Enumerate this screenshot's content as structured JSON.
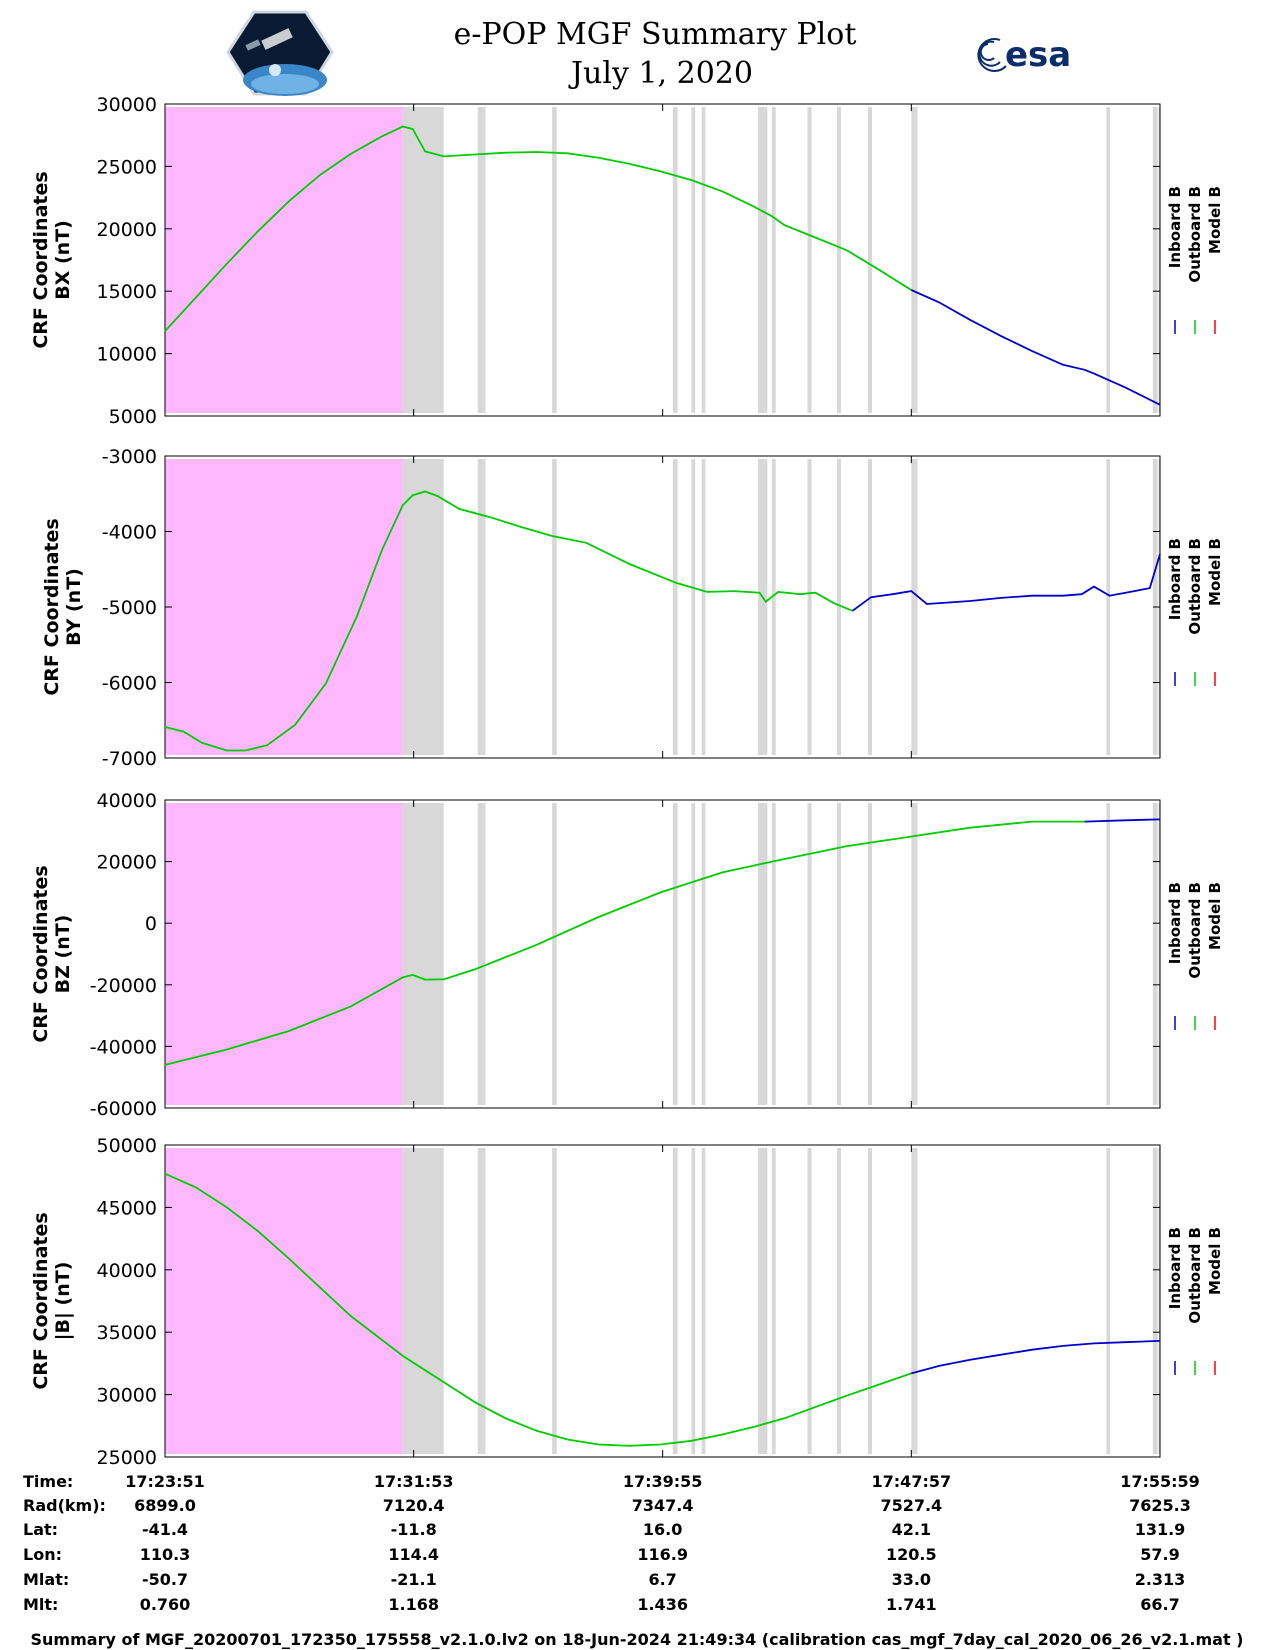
{
  "header": {
    "title": "e-POP MGF Summary Plot",
    "date": "July 1, 2020",
    "logo_left": "cassiope-mission-logo",
    "logo_right_text": "esa"
  },
  "colors": {
    "inboard": "#0000cc",
    "outboard": "#00cc00",
    "model": "#ff0000",
    "pink_region": "#ffb8ff",
    "gray_region": "#d8d8d8"
  },
  "legend": [
    "Inboard B",
    "Outboard B",
    "Model B"
  ],
  "time_axis": {
    "start_min": 0,
    "end_min": 32.13,
    "tick_minutes": [
      0,
      8.03,
      16.07,
      24.1,
      32.13
    ]
  },
  "shading": {
    "pink": [
      [
        0,
        7.68
      ]
    ],
    "gray": [
      [
        7.68,
        9.0
      ],
      [
        10.1,
        10.35
      ],
      [
        12.5,
        12.65
      ],
      [
        16.4,
        16.55
      ],
      [
        17.0,
        17.12
      ],
      [
        17.33,
        17.45
      ],
      [
        19.15,
        19.45
      ],
      [
        19.6,
        19.72
      ],
      [
        20.75,
        20.88
      ],
      [
        21.7,
        21.83
      ],
      [
        22.7,
        22.83
      ],
      [
        24.1,
        24.3
      ],
      [
        30.4,
        30.52
      ],
      [
        31.9,
        32.05
      ],
      [
        32.08,
        32.13
      ]
    ]
  },
  "chart_data": [
    {
      "type": "line",
      "id": "bx",
      "ylabel_line1": "CRF Coordinates",
      "ylabel_line2": "BX (nT)",
      "ylim": [
        5000,
        30000
      ],
      "yticks": [
        5000,
        10000,
        15000,
        20000,
        25000,
        30000
      ],
      "series": [
        {
          "name": "Outboard B",
          "x": [
            0,
            1,
            2,
            3,
            4,
            5,
            6,
            7,
            7.68,
            8.0,
            8.4,
            9.0,
            10,
            11,
            12,
            13,
            14,
            15,
            16,
            17,
            18,
            19,
            19.6,
            20,
            21,
            22,
            23,
            24.1
          ],
          "y": [
            11800,
            14500,
            17200,
            19800,
            22200,
            24300,
            26000,
            27400,
            28200,
            28000,
            26200,
            25800,
            25950,
            26100,
            26150,
            26050,
            25700,
            25200,
            24600,
            23900,
            23000,
            21800,
            21000,
            20300,
            19300,
            18300,
            16800,
            15100
          ]
        },
        {
          "name": "Inboard B",
          "x": [
            24.1,
            25,
            26,
            27,
            28,
            29,
            29.7,
            30,
            31,
            32.13
          ],
          "y": [
            15100,
            14100,
            12700,
            11400,
            10200,
            9100,
            8700,
            8400,
            7300,
            5900
          ]
        }
      ]
    },
    {
      "type": "line",
      "id": "by",
      "ylabel_line1": "CRF Coordinates",
      "ylabel_line2": "BY (nT)",
      "ylim": [
        -7000,
        -3000
      ],
      "yticks": [
        -7000,
        -6000,
        -5000,
        -4000,
        -3000
      ],
      "series": [
        {
          "name": "Outboard B",
          "x": [
            0,
            0.6,
            1.2,
            2.0,
            2.6,
            3.3,
            4.2,
            5.2,
            6.2,
            7.0,
            7.68,
            8.0,
            8.4,
            8.8,
            9.5,
            10.5,
            11.5,
            12.5,
            13.6,
            15,
            16.5,
            17.5,
            18.4,
            19.2,
            19.4,
            19.8,
            20.5,
            21.0,
            21.6,
            22.2
          ],
          "y": [
            -6590,
            -6650,
            -6800,
            -6900,
            -6900,
            -6830,
            -6560,
            -6010,
            -5120,
            -4250,
            -3650,
            -3520,
            -3470,
            -3530,
            -3700,
            -3810,
            -3940,
            -4060,
            -4150,
            -4430,
            -4680,
            -4800,
            -4790,
            -4810,
            -4930,
            -4800,
            -4830,
            -4810,
            -4950,
            -5050
          ]
        },
        {
          "name": "Inboard B",
          "x": [
            22.2,
            22.8,
            23.5,
            24.1,
            24.6,
            25.3,
            26,
            27,
            28,
            29,
            29.6,
            30,
            30.5,
            31.3,
            31.8,
            32.13
          ],
          "y": [
            -5050,
            -4870,
            -4830,
            -4790,
            -4960,
            -4940,
            -4920,
            -4880,
            -4850,
            -4850,
            -4830,
            -4730,
            -4850,
            -4790,
            -4750,
            -4300
          ]
        }
      ]
    },
    {
      "type": "line",
      "id": "bz",
      "ylabel_line1": "CRF Coordinates",
      "ylabel_line2": "BZ (nT)",
      "ylim": [
        -60000,
        40000
      ],
      "yticks": [
        -60000,
        -40000,
        -20000,
        0,
        20000,
        40000
      ],
      "series": [
        {
          "name": "Outboard B",
          "x": [
            0,
            2,
            4,
            6,
            7.68,
            8.0,
            8.4,
            9.0,
            10,
            12,
            14,
            16,
            18,
            19.6,
            22,
            24,
            26,
            28,
            29.7
          ],
          "y": [
            -46000,
            -41000,
            -35000,
            -27000,
            -17600,
            -16800,
            -18300,
            -18200,
            -15000,
            -7000,
            2000,
            10000,
            16500,
            20000,
            25000,
            28000,
            31000,
            33000,
            33000
          ]
        },
        {
          "name": "Inboard B",
          "x": [
            29.7,
            31,
            32.13
          ],
          "y": [
            33000,
            33400,
            33700
          ]
        }
      ]
    },
    {
      "type": "line",
      "id": "bmag",
      "ylabel_line1": "CRF Coordinates",
      "ylabel_line2": "|B| (nT)",
      "ylim": [
        25000,
        50000
      ],
      "yticks": [
        25000,
        30000,
        35000,
        40000,
        45000,
        50000
      ],
      "series": [
        {
          "name": "Outboard B",
          "x": [
            0,
            1,
            2,
            3,
            4,
            5,
            6,
            7.68,
            9,
            10,
            11,
            12,
            13,
            14,
            15,
            16,
            17,
            18,
            19,
            20,
            22,
            24.1
          ],
          "y": [
            47700,
            46600,
            45000,
            43100,
            40900,
            38600,
            36300,
            33100,
            31000,
            29400,
            28100,
            27100,
            26400,
            26000,
            25900,
            26000,
            26300,
            26800,
            27400,
            28100,
            29900,
            31700
          ]
        },
        {
          "name": "Inboard B",
          "x": [
            24.1,
            25,
            26,
            27,
            28,
            29,
            30,
            31,
            32.13
          ],
          "y": [
            31700,
            32300,
            32800,
            33200,
            33600,
            33900,
            34100,
            34200,
            34300
          ]
        }
      ]
    }
  ],
  "table": {
    "row_labels": [
      "Time:",
      "Rad(km):",
      "Lat:",
      "Lon:",
      "Mlat:",
      "Mlt:"
    ],
    "columns": [
      [
        "17:23:51",
        "6899.0",
        "-41.4",
        "110.3",
        "-50.7",
        "0.760"
      ],
      [
        "17:31:53",
        "7120.4",
        "-11.8",
        "114.4",
        "-21.1",
        "1.168"
      ],
      [
        "17:39:55",
        "7347.4",
        "16.0",
        "116.9",
        "6.7",
        "1.436"
      ],
      [
        "17:47:57",
        "7527.4",
        "42.1",
        "120.5",
        "33.0",
        "1.741"
      ],
      [
        "17:55:59",
        "7625.3",
        "131.9",
        "57.9",
        "2.313",
        "66.7"
      ]
    ]
  },
  "footer": "Summary of MGF_20200701_172350_175558_v2.1.0.lv2 on 18-Jun-2024 21:49:34 (calibration cas_mgf_7day_cal_2020_06_26_v2.1.mat )"
}
